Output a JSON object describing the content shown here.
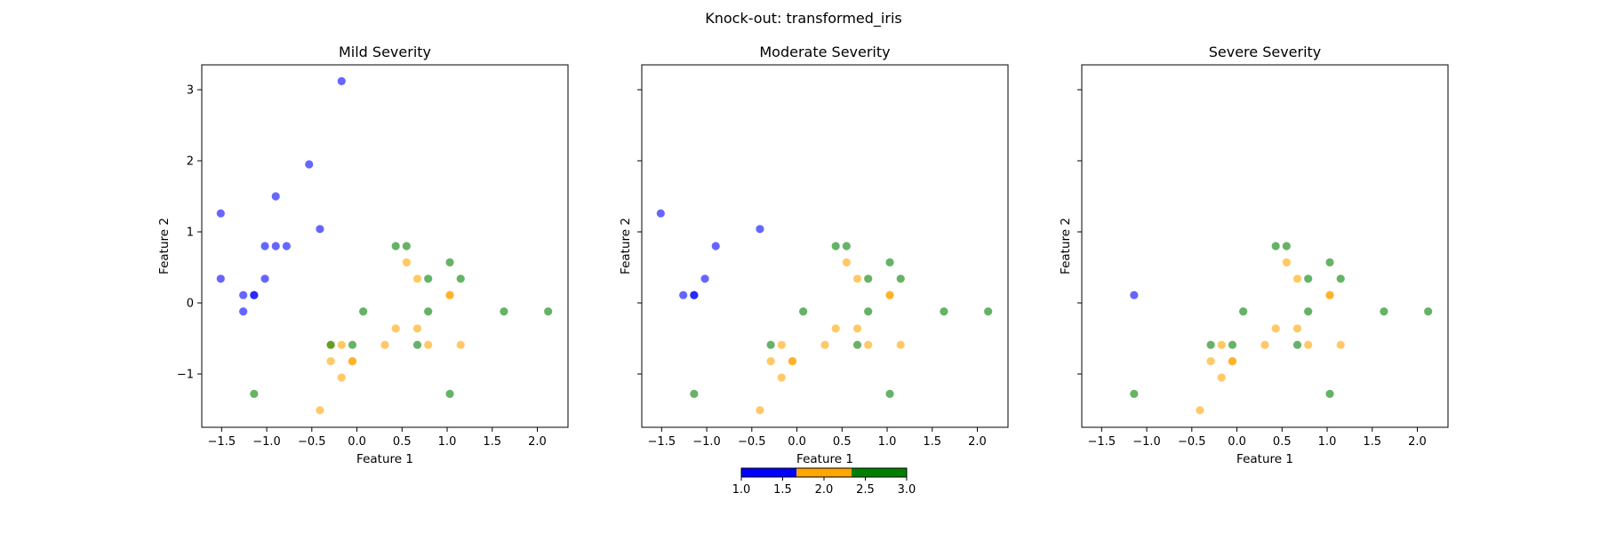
{
  "figure": {
    "suptitle": "Knock-out: transformed_iris"
  },
  "colorbar": {
    "colors": [
      "#0000ff",
      "#ffa500",
      "#008000"
    ],
    "range": [
      1.0,
      3.0
    ],
    "ticks": [
      "1.0",
      "1.5",
      "2.0",
      "2.5",
      "3.0"
    ]
  },
  "chart_data": [
    {
      "type": "scatter",
      "title": "Mild Severity",
      "xlabel": "Feature 1",
      "ylabel": "Feature 2",
      "xlim": [
        -1.72,
        2.34
      ],
      "ylim": [
        -1.75,
        3.35
      ],
      "xticks": [
        "−1.5",
        "−1.0",
        "−0.5",
        "0.0",
        "0.5",
        "1.0",
        "1.5",
        "2.0"
      ],
      "yticks": [
        "−1",
        "0",
        "1",
        "2",
        "3"
      ],
      "grid": false,
      "point_opacity": 0.6,
      "series": [
        {
          "class": 1,
          "color": "#0000ff",
          "points": [
            [
              -0.17,
              3.12
            ],
            [
              -0.53,
              1.95
            ],
            [
              -1.51,
              1.26
            ],
            [
              -0.9,
              1.5
            ],
            [
              -0.41,
              1.04
            ],
            [
              -1.02,
              0.8
            ],
            [
              -0.9,
              0.8
            ],
            [
              -0.78,
              0.8
            ],
            [
              -1.51,
              0.34
            ],
            [
              -1.02,
              0.34
            ],
            [
              -1.26,
              0.11
            ],
            [
              -1.14,
              0.11
            ],
            [
              -1.14,
              0.11
            ],
            [
              -1.26,
              -0.12
            ]
          ]
        },
        {
          "class": 2,
          "color": "#ffa500",
          "points": [
            [
              0.55,
              0.57
            ],
            [
              0.67,
              0.34
            ],
            [
              1.03,
              0.11
            ],
            [
              1.03,
              0.11
            ],
            [
              0.43,
              -0.36
            ],
            [
              0.67,
              -0.36
            ],
            [
              -0.29,
              -0.59
            ],
            [
              -0.17,
              -0.59
            ],
            [
              0.31,
              -0.59
            ],
            [
              0.79,
              -0.59
            ],
            [
              1.15,
              -0.59
            ],
            [
              -0.29,
              -0.82
            ],
            [
              -0.05,
              -0.82
            ],
            [
              -0.05,
              -0.82
            ],
            [
              -0.17,
              -1.05
            ],
            [
              -0.41,
              -1.51
            ]
          ]
        },
        {
          "class": 3,
          "color": "#008000",
          "points": [
            [
              0.43,
              0.8
            ],
            [
              0.55,
              0.8
            ],
            [
              1.03,
              0.57
            ],
            [
              0.79,
              0.34
            ],
            [
              1.15,
              0.34
            ],
            [
              0.07,
              -0.12
            ],
            [
              0.79,
              -0.12
            ],
            [
              1.63,
              -0.12
            ],
            [
              2.12,
              -0.12
            ],
            [
              -0.29,
              -0.59
            ],
            [
              -0.05,
              -0.59
            ],
            [
              0.67,
              -0.59
            ],
            [
              -1.14,
              -1.28
            ],
            [
              1.03,
              -1.28
            ]
          ]
        }
      ]
    },
    {
      "type": "scatter",
      "title": "Moderate Severity",
      "xlabel": "Feature 1",
      "ylabel": "Feature 2",
      "xlim": [
        -1.72,
        2.34
      ],
      "ylim": [
        -1.75,
        3.35
      ],
      "xticks": [
        "−1.5",
        "−1.0",
        "−0.5",
        "0.0",
        "0.5",
        "1.0",
        "1.5",
        "2.0"
      ],
      "yticks": [],
      "grid": false,
      "point_opacity": 0.6,
      "series": [
        {
          "class": 1,
          "color": "#0000ff",
          "points": [
            [
              -1.51,
              1.26
            ],
            [
              -0.41,
              1.04
            ],
            [
              -0.9,
              0.8
            ],
            [
              -1.02,
              0.34
            ],
            [
              -1.26,
              0.11
            ],
            [
              -1.14,
              0.11
            ],
            [
              -1.14,
              0.11
            ]
          ]
        },
        {
          "class": 2,
          "color": "#ffa500",
          "points": [
            [
              0.55,
              0.57
            ],
            [
              0.67,
              0.34
            ],
            [
              1.03,
              0.11
            ],
            [
              1.03,
              0.11
            ],
            [
              0.43,
              -0.36
            ],
            [
              0.67,
              -0.36
            ],
            [
              -0.17,
              -0.59
            ],
            [
              0.31,
              -0.59
            ],
            [
              0.79,
              -0.59
            ],
            [
              1.15,
              -0.59
            ],
            [
              -0.29,
              -0.82
            ],
            [
              -0.05,
              -0.82
            ],
            [
              -0.05,
              -0.82
            ],
            [
              -0.17,
              -1.05
            ],
            [
              -0.41,
              -1.51
            ]
          ]
        },
        {
          "class": 3,
          "color": "#008000",
          "points": [
            [
              0.43,
              0.8
            ],
            [
              0.55,
              0.8
            ],
            [
              1.03,
              0.57
            ],
            [
              0.79,
              0.34
            ],
            [
              1.15,
              0.34
            ],
            [
              0.07,
              -0.12
            ],
            [
              0.79,
              -0.12
            ],
            [
              1.63,
              -0.12
            ],
            [
              2.12,
              -0.12
            ],
            [
              -0.29,
              -0.59
            ],
            [
              0.67,
              -0.59
            ],
            [
              -1.14,
              -1.28
            ],
            [
              1.03,
              -1.28
            ]
          ]
        }
      ]
    },
    {
      "type": "scatter",
      "title": "Severe Severity",
      "xlabel": "Feature 1",
      "ylabel": "Feature 2",
      "xlim": [
        -1.72,
        2.34
      ],
      "ylim": [
        -1.75,
        3.35
      ],
      "xticks": [
        "−1.5",
        "−1.0",
        "−0.5",
        "0.0",
        "0.5",
        "1.0",
        "1.5",
        "2.0"
      ],
      "yticks": [],
      "grid": false,
      "point_opacity": 0.6,
      "series": [
        {
          "class": 1,
          "color": "#0000ff",
          "points": [
            [
              -1.14,
              0.11
            ]
          ]
        },
        {
          "class": 2,
          "color": "#ffa500",
          "points": [
            [
              0.55,
              0.57
            ],
            [
              0.67,
              0.34
            ],
            [
              1.03,
              0.11
            ],
            [
              1.03,
              0.11
            ],
            [
              0.43,
              -0.36
            ],
            [
              0.67,
              -0.36
            ],
            [
              -0.17,
              -0.59
            ],
            [
              0.31,
              -0.59
            ],
            [
              0.79,
              -0.59
            ],
            [
              1.15,
              -0.59
            ],
            [
              -0.29,
              -0.82
            ],
            [
              -0.05,
              -0.82
            ],
            [
              -0.05,
              -0.82
            ],
            [
              -0.17,
              -1.05
            ],
            [
              -0.41,
              -1.51
            ]
          ]
        },
        {
          "class": 3,
          "color": "#008000",
          "points": [
            [
              0.43,
              0.8
            ],
            [
              0.55,
              0.8
            ],
            [
              1.03,
              0.57
            ],
            [
              0.79,
              0.34
            ],
            [
              1.15,
              0.34
            ],
            [
              0.07,
              -0.12
            ],
            [
              0.79,
              -0.12
            ],
            [
              1.63,
              -0.12
            ],
            [
              2.12,
              -0.12
            ],
            [
              -0.29,
              -0.59
            ],
            [
              -0.05,
              -0.59
            ],
            [
              0.67,
              -0.59
            ],
            [
              -1.14,
              -1.28
            ],
            [
              1.03,
              -1.28
            ]
          ]
        }
      ]
    }
  ]
}
